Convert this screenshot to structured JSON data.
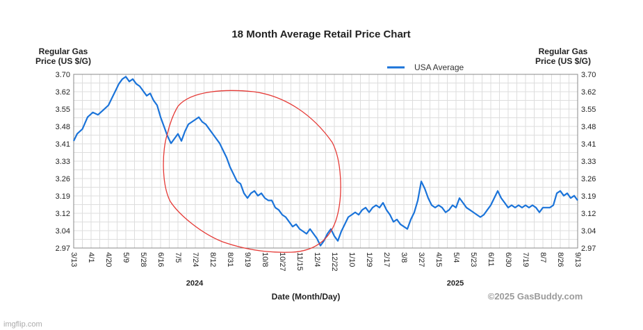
{
  "chart_data": {
    "type": "line",
    "title": "18 Month Average Retail Price Chart",
    "ylabel_left": [
      "Regular Gas",
      "Price (US $/G)"
    ],
    "ylabel_right": [
      "Regular Gas",
      "Price (US $/G)"
    ],
    "xlabel": "Date (Month/Day)",
    "yticks": [
      "3.70",
      "3.62",
      "3.55",
      "3.48",
      "3.41",
      "3.33",
      "3.26",
      "3.19",
      "3.12",
      "3.04",
      "2.97"
    ],
    "ylim": [
      2.97,
      3.7
    ],
    "xticks": [
      "3/13",
      "4/1",
      "4/20",
      "5/9",
      "5/28",
      "6/16",
      "7/5",
      "7/24",
      "8/12",
      "8/31",
      "9/19",
      "10/8",
      "10/27",
      "11/15",
      "12/4",
      "12/22",
      "1/10",
      "1/29",
      "2/17",
      "3/8",
      "3/27",
      "4/15",
      "5/4",
      "5/23",
      "6/11",
      "6/30",
      "7/19",
      "8/7",
      "8/26",
      "9/13"
    ],
    "years": [
      {
        "label": "2024",
        "tick_index": 7
      },
      {
        "label": "2025",
        "tick_index": 22
      }
    ],
    "grid": true,
    "legend": "top-center",
    "series": [
      {
        "name": "USA Average",
        "color": "#1a73d9",
        "points": [
          [
            0,
            3.42
          ],
          [
            0.2,
            3.45
          ],
          [
            0.5,
            3.47
          ],
          [
            0.8,
            3.52
          ],
          [
            1.1,
            3.54
          ],
          [
            1.4,
            3.53
          ],
          [
            1.7,
            3.55
          ],
          [
            2.0,
            3.57
          ],
          [
            2.2,
            3.6
          ],
          [
            2.4,
            3.63
          ],
          [
            2.6,
            3.66
          ],
          [
            2.8,
            3.68
          ],
          [
            3.0,
            3.69
          ],
          [
            3.2,
            3.67
          ],
          [
            3.4,
            3.68
          ],
          [
            3.6,
            3.66
          ],
          [
            3.8,
            3.65
          ],
          [
            4.0,
            3.63
          ],
          [
            4.2,
            3.61
          ],
          [
            4.4,
            3.62
          ],
          [
            4.6,
            3.59
          ],
          [
            4.8,
            3.57
          ],
          [
            5.0,
            3.52
          ],
          [
            5.2,
            3.48
          ],
          [
            5.4,
            3.44
          ],
          [
            5.6,
            3.41
          ],
          [
            5.8,
            3.43
          ],
          [
            6.0,
            3.45
          ],
          [
            6.2,
            3.42
          ],
          [
            6.4,
            3.46
          ],
          [
            6.6,
            3.49
          ],
          [
            6.8,
            3.5
          ],
          [
            7.0,
            3.51
          ],
          [
            7.2,
            3.52
          ],
          [
            7.4,
            3.5
          ],
          [
            7.6,
            3.49
          ],
          [
            7.8,
            3.47
          ],
          [
            8.0,
            3.45
          ],
          [
            8.2,
            3.43
          ],
          [
            8.4,
            3.41
          ],
          [
            8.6,
            3.38
          ],
          [
            8.8,
            3.35
          ],
          [
            9.0,
            3.31
          ],
          [
            9.2,
            3.28
          ],
          [
            9.4,
            3.25
          ],
          [
            9.6,
            3.24
          ],
          [
            9.8,
            3.2
          ],
          [
            10.0,
            3.18
          ],
          [
            10.2,
            3.2
          ],
          [
            10.4,
            3.21
          ],
          [
            10.6,
            3.19
          ],
          [
            10.8,
            3.2
          ],
          [
            11.0,
            3.18
          ],
          [
            11.2,
            3.17
          ],
          [
            11.4,
            3.17
          ],
          [
            11.6,
            3.14
          ],
          [
            11.8,
            3.13
          ],
          [
            12.0,
            3.11
          ],
          [
            12.2,
            3.1
          ],
          [
            12.4,
            3.08
          ],
          [
            12.6,
            3.06
          ],
          [
            12.8,
            3.07
          ],
          [
            13.0,
            3.05
          ],
          [
            13.2,
            3.04
          ],
          [
            13.4,
            3.03
          ],
          [
            13.6,
            3.05
          ],
          [
            13.8,
            3.03
          ],
          [
            14.0,
            3.01
          ],
          [
            14.2,
            2.98
          ],
          [
            14.4,
            3.0
          ],
          [
            14.6,
            3.03
          ],
          [
            14.8,
            3.05
          ],
          [
            15.0,
            3.02
          ],
          [
            15.2,
            3.0
          ],
          [
            15.4,
            3.04
          ],
          [
            15.6,
            3.07
          ],
          [
            15.8,
            3.1
          ],
          [
            16.0,
            3.11
          ],
          [
            16.2,
            3.12
          ],
          [
            16.4,
            3.11
          ],
          [
            16.6,
            3.13
          ],
          [
            16.8,
            3.14
          ],
          [
            17.0,
            3.12
          ],
          [
            17.2,
            3.14
          ],
          [
            17.4,
            3.15
          ],
          [
            17.6,
            3.14
          ],
          [
            17.8,
            3.16
          ],
          [
            18.0,
            3.13
          ],
          [
            18.2,
            3.11
          ],
          [
            18.4,
            3.08
          ],
          [
            18.6,
            3.09
          ],
          [
            18.8,
            3.07
          ],
          [
            19.0,
            3.06
          ],
          [
            19.2,
            3.05
          ],
          [
            19.4,
            3.09
          ],
          [
            19.6,
            3.12
          ],
          [
            19.8,
            3.17
          ],
          [
            20.0,
            3.25
          ],
          [
            20.2,
            3.22
          ],
          [
            20.4,
            3.18
          ],
          [
            20.6,
            3.15
          ],
          [
            20.8,
            3.14
          ],
          [
            21.0,
            3.15
          ],
          [
            21.2,
            3.14
          ],
          [
            21.4,
            3.12
          ],
          [
            21.6,
            3.13
          ],
          [
            21.8,
            3.15
          ],
          [
            22.0,
            3.14
          ],
          [
            22.2,
            3.18
          ],
          [
            22.4,
            3.16
          ],
          [
            22.6,
            3.14
          ],
          [
            22.8,
            3.13
          ],
          [
            23.0,
            3.12
          ],
          [
            23.2,
            3.11
          ],
          [
            23.4,
            3.1
          ],
          [
            23.6,
            3.11
          ],
          [
            23.8,
            3.13
          ],
          [
            24.0,
            3.15
          ],
          [
            24.2,
            3.18
          ],
          [
            24.4,
            3.21
          ],
          [
            24.6,
            3.18
          ],
          [
            24.8,
            3.16
          ],
          [
            25.0,
            3.14
          ],
          [
            25.2,
            3.15
          ],
          [
            25.4,
            3.14
          ],
          [
            25.6,
            3.15
          ],
          [
            25.8,
            3.14
          ],
          [
            26.0,
            3.15
          ],
          [
            26.2,
            3.14
          ],
          [
            26.4,
            3.15
          ],
          [
            26.6,
            3.14
          ],
          [
            26.8,
            3.12
          ],
          [
            27.0,
            3.14
          ],
          [
            27.2,
            3.14
          ],
          [
            27.4,
            3.14
          ],
          [
            27.6,
            3.15
          ],
          [
            27.8,
            3.2
          ],
          [
            28.0,
            3.21
          ],
          [
            28.2,
            3.19
          ],
          [
            28.4,
            3.2
          ],
          [
            28.6,
            3.18
          ],
          [
            28.8,
            3.19
          ],
          [
            29.0,
            3.17
          ]
        ]
      }
    ]
  },
  "credit": "©2025 GasBuddy.com",
  "watermark": "imgflip.com",
  "annotation": {
    "type": "hand-drawn ellipse",
    "color": "#e53935"
  }
}
